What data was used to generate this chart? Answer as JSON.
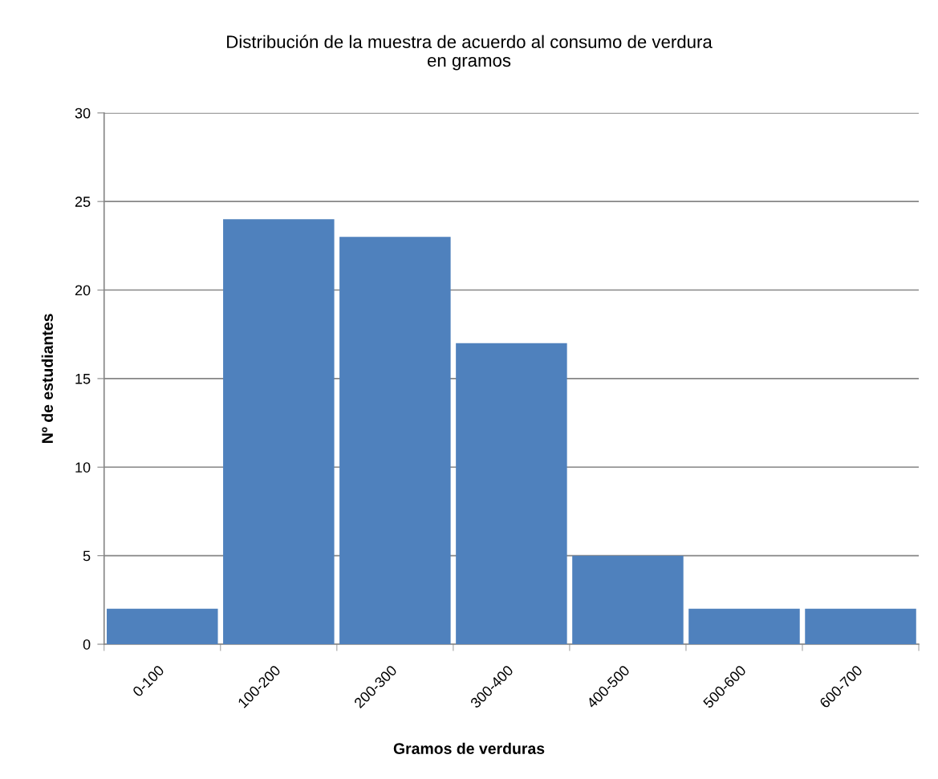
{
  "chart_data": {
    "type": "bar",
    "title": "Distribución de la muestra de acuerdo al consumo de verdura\nen gramos",
    "xlabel": "Gramos de verduras",
    "ylabel": "Nº de estudiantes",
    "categories": [
      "0-100",
      "100-200",
      "200-300",
      "300-400",
      "400-500",
      "500-600",
      "600-700"
    ],
    "values": [
      2,
      24,
      23,
      17,
      5,
      2,
      2
    ],
    "color": "#4f81bd",
    "ylim": [
      0,
      30
    ],
    "yticks": [
      0,
      5,
      10,
      15,
      20,
      25,
      30
    ],
    "grid": "y",
    "legend": false
  }
}
